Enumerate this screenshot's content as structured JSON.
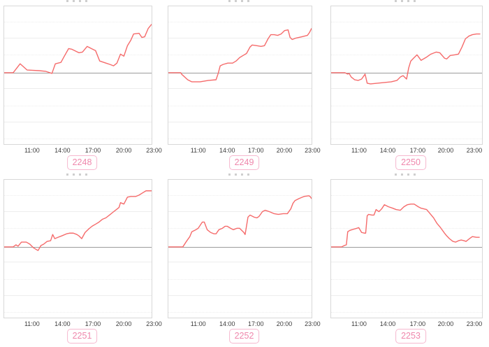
{
  "page": {
    "background": "#ffffff"
  },
  "colors": {
    "line": "#f56b6b",
    "baseline": "#9c9c9c",
    "plot_border": "#d8d8d8",
    "grid": "#ededed",
    "tick_text": "#3c3c3c",
    "badge_text": "#ef87ac",
    "badge_border": "#f6b8cf",
    "badge_bg": "#ffffff"
  },
  "points_format": "percent of plot box: x 0=left edge 100=right edge, y 0=top 100=bottom; the dark horizontal reference line (prior-close baseline) sits at baseline_pct",
  "chart_data": [
    {
      "type": "line",
      "title": "2248",
      "x_ticks": [
        "11:00",
        "14:00",
        "17:00",
        "20:00",
        "23:00"
      ],
      "baseline_pct": 48.2,
      "points": [
        [
          0,
          48.2
        ],
        [
          6.1,
          48.2
        ],
        [
          10.8,
          41.7
        ],
        [
          15.5,
          46.2
        ],
        [
          23.5,
          46.7
        ],
        [
          28.2,
          47.2
        ],
        [
          32.4,
          48.7
        ],
        [
          34.7,
          41.7
        ],
        [
          38.5,
          40.7
        ],
        [
          40.8,
          36.2
        ],
        [
          43.7,
          30.7
        ],
        [
          46,
          31.2
        ],
        [
          50.7,
          33.7
        ],
        [
          53.1,
          33.2
        ],
        [
          56.3,
          29.1
        ],
        [
          59.2,
          30.7
        ],
        [
          62,
          32.2
        ],
        [
          64.8,
          39.7
        ],
        [
          69,
          41.2
        ],
        [
          71.8,
          42.2
        ],
        [
          74.2,
          43.2
        ],
        [
          76.5,
          41.2
        ],
        [
          78.9,
          34.7
        ],
        [
          81.2,
          36.2
        ],
        [
          83.6,
          28.6
        ],
        [
          85.9,
          24.6
        ],
        [
          87.8,
          20.1
        ],
        [
          91.5,
          19.6
        ],
        [
          93.4,
          22.6
        ],
        [
          95.3,
          22.1
        ],
        [
          97.7,
          16.1
        ],
        [
          100,
          13.1
        ]
      ]
    },
    {
      "type": "line",
      "title": "2249",
      "x_ticks": [
        "11:00",
        "14:00",
        "17:00",
        "20:00",
        "23:00"
      ],
      "baseline_pct": 48.2,
      "points": [
        [
          0,
          48.2
        ],
        [
          8.7,
          48.2
        ],
        [
          9.2,
          49.2
        ],
        [
          13.5,
          53.3
        ],
        [
          16.4,
          54.8
        ],
        [
          22.2,
          54.8
        ],
        [
          28,
          53.8
        ],
        [
          33.3,
          53.3
        ],
        [
          34.8,
          48.7
        ],
        [
          36.2,
          43.2
        ],
        [
          38.2,
          42.2
        ],
        [
          41.5,
          41.2
        ],
        [
          44.9,
          41.2
        ],
        [
          47.3,
          39.7
        ],
        [
          49.8,
          37.2
        ],
        [
          52.2,
          35.7
        ],
        [
          54.6,
          34.2
        ],
        [
          57,
          29.6
        ],
        [
          58.5,
          28.1
        ],
        [
          61.8,
          28.6
        ],
        [
          64.7,
          29.1
        ],
        [
          67.1,
          28.6
        ],
        [
          69.6,
          23.6
        ],
        [
          71.5,
          20.6
        ],
        [
          73.9,
          20.6
        ],
        [
          76.3,
          21.1
        ],
        [
          78.7,
          20.1
        ],
        [
          81.2,
          17.6
        ],
        [
          83.6,
          17.1
        ],
        [
          85,
          22.6
        ],
        [
          86.5,
          24.1
        ],
        [
          88.9,
          23.1
        ],
        [
          93.2,
          22.1
        ],
        [
          97.1,
          21.1
        ],
        [
          98.5,
          19.1
        ],
        [
          100,
          16.1
        ]
      ]
    },
    {
      "type": "line",
      "title": "2250",
      "x_ticks": [
        "11:00",
        "14:00",
        "17:00",
        "20:00",
        "23:00"
      ],
      "baseline_pct": 48.2,
      "points": [
        [
          0,
          48.2
        ],
        [
          9.2,
          48.2
        ],
        [
          11,
          49.2
        ],
        [
          11.9,
          48.7
        ],
        [
          13.3,
          51.3
        ],
        [
          15.6,
          53.3
        ],
        [
          17.9,
          53.8
        ],
        [
          20.2,
          52.8
        ],
        [
          22.5,
          49.2
        ],
        [
          23.9,
          55.8
        ],
        [
          26.1,
          56.3
        ],
        [
          35.3,
          55.3
        ],
        [
          39.9,
          54.8
        ],
        [
          43.6,
          53.8
        ],
        [
          45.9,
          51.3
        ],
        [
          47.7,
          50.3
        ],
        [
          50,
          52.8
        ],
        [
          51.4,
          44.7
        ],
        [
          52.8,
          39.7
        ],
        [
          54.6,
          37.7
        ],
        [
          56.9,
          35.2
        ],
        [
          59.6,
          39.2
        ],
        [
          62.8,
          37.2
        ],
        [
          66.1,
          34.7
        ],
        [
          69.7,
          33.2
        ],
        [
          72,
          33.7
        ],
        [
          75.2,
          37.7
        ],
        [
          76.6,
          38.2
        ],
        [
          78.9,
          35.7
        ],
        [
          82.1,
          35.2
        ],
        [
          84.4,
          34.7
        ],
        [
          86.7,
          29.6
        ],
        [
          89,
          23.6
        ],
        [
          91.3,
          21.6
        ],
        [
          93.6,
          20.6
        ],
        [
          96.3,
          20.1
        ],
        [
          98.6,
          20.1
        ]
      ]
    },
    {
      "type": "line",
      "title": "2251",
      "x_ticks": [
        "11:00",
        "14:00",
        "17:00",
        "20:00",
        "23:00"
      ],
      "baseline_pct": 48.7,
      "points": [
        [
          0,
          48.7
        ],
        [
          6.1,
          48.7
        ],
        [
          8,
          47.2
        ],
        [
          9.4,
          48.2
        ],
        [
          11.7,
          45.2
        ],
        [
          13.1,
          45.2
        ],
        [
          15,
          45.2
        ],
        [
          17.4,
          46.7
        ],
        [
          19.7,
          49.2
        ],
        [
          22.1,
          50.8
        ],
        [
          23,
          51.3
        ],
        [
          24.9,
          47.7
        ],
        [
          26.8,
          46.7
        ],
        [
          29.1,
          44.7
        ],
        [
          31.5,
          44.2
        ],
        [
          32.9,
          39.7
        ],
        [
          34.3,
          42.7
        ],
        [
          36.6,
          41.7
        ],
        [
          39,
          40.7
        ],
        [
          42.3,
          39.2
        ],
        [
          44.6,
          38.7
        ],
        [
          46.9,
          38.7
        ],
        [
          49.3,
          39.7
        ],
        [
          50.7,
          40.7
        ],
        [
          52.6,
          42.7
        ],
        [
          54.9,
          38.2
        ],
        [
          57.3,
          35.7
        ],
        [
          59.6,
          33.7
        ],
        [
          62,
          32.2
        ],
        [
          64.3,
          30.7
        ],
        [
          66.7,
          28.6
        ],
        [
          69,
          27.6
        ],
        [
          71.4,
          25.6
        ],
        [
          73.7,
          23.6
        ],
        [
          76.1,
          21.6
        ],
        [
          77.9,
          20.1
        ],
        [
          78.9,
          16.6
        ],
        [
          81.2,
          17.6
        ],
        [
          83.6,
          12.6
        ],
        [
          85.9,
          12.1
        ],
        [
          89.2,
          12.1
        ],
        [
          91.5,
          11.1
        ],
        [
          93.9,
          9.5
        ],
        [
          96.2,
          8
        ],
        [
          98.6,
          8
        ],
        [
          100,
          8
        ]
      ]
    },
    {
      "type": "line",
      "title": "2252",
      "x_ticks": [
        "11:00",
        "14:00",
        "17:00",
        "20:00",
        "23:00"
      ],
      "baseline_pct": 48.7,
      "points": [
        [
          0,
          48.7
        ],
        [
          10.1,
          48.7
        ],
        [
          12.6,
          44.7
        ],
        [
          15,
          41.2
        ],
        [
          16.4,
          37.7
        ],
        [
          18.4,
          36.7
        ],
        [
          20.8,
          35.2
        ],
        [
          23.7,
          30.7
        ],
        [
          25.1,
          30.7
        ],
        [
          27.1,
          36.2
        ],
        [
          29.5,
          38.2
        ],
        [
          31.9,
          39.2
        ],
        [
          33.3,
          39.2
        ],
        [
          35.3,
          36.2
        ],
        [
          37.7,
          35.2
        ],
        [
          39.6,
          33.7
        ],
        [
          41.1,
          33.7
        ],
        [
          43.5,
          35.2
        ],
        [
          45.4,
          36.2
        ],
        [
          47.8,
          35.2
        ],
        [
          49.8,
          35.2
        ],
        [
          52.7,
          38.2
        ],
        [
          53.6,
          39.7
        ],
        [
          55.6,
          27.1
        ],
        [
          57,
          25.6
        ],
        [
          59.9,
          27.1
        ],
        [
          61.8,
          27.6
        ],
        [
          63.3,
          26.6
        ],
        [
          65.7,
          23.1
        ],
        [
          67.6,
          22.1
        ],
        [
          70.5,
          23.1
        ],
        [
          73.9,
          24.6
        ],
        [
          76.8,
          25.1
        ],
        [
          80.2,
          24.6
        ],
        [
          83.1,
          24.6
        ],
        [
          85.5,
          21.1
        ],
        [
          87,
          17.1
        ],
        [
          88.4,
          15.1
        ],
        [
          91.3,
          13.6
        ],
        [
          94.7,
          12.1
        ],
        [
          98.1,
          11.6
        ],
        [
          99,
          12.1
        ],
        [
          100,
          13.6
        ]
      ]
    },
    {
      "type": "line",
      "title": "2253",
      "x_ticks": [
        "11:00",
        "14:00",
        "17:00",
        "20:00",
        "23:00"
      ],
      "baseline_pct": 48.7,
      "points": [
        [
          0,
          48.7
        ],
        [
          6.9,
          48.7
        ],
        [
          8.7,
          47.7
        ],
        [
          10.1,
          47.2
        ],
        [
          11,
          37.7
        ],
        [
          12.4,
          36.7
        ],
        [
          13.8,
          36.2
        ],
        [
          17,
          35.2
        ],
        [
          18.3,
          34.7
        ],
        [
          20.2,
          38.2
        ],
        [
          22,
          38.7
        ],
        [
          22.9,
          38.7
        ],
        [
          23.9,
          26.1
        ],
        [
          24.8,
          25.1
        ],
        [
          27.1,
          25.6
        ],
        [
          28.4,
          25.6
        ],
        [
          29.8,
          21.6
        ],
        [
          31.7,
          23.1
        ],
        [
          33.5,
          21.1
        ],
        [
          35.3,
          18.1
        ],
        [
          38.1,
          19.6
        ],
        [
          40.8,
          20.6
        ],
        [
          43.1,
          21.6
        ],
        [
          45.9,
          22.1
        ],
        [
          48.2,
          19.6
        ],
        [
          50.5,
          18.1
        ],
        [
          52.8,
          17.6
        ],
        [
          55,
          17.6
        ],
        [
          57.8,
          19.6
        ],
        [
          59.6,
          20.6
        ],
        [
          61.5,
          21.1
        ],
        [
          63.3,
          21.6
        ],
        [
          65.6,
          24.6
        ],
        [
          67.9,
          27.6
        ],
        [
          70.2,
          31.7
        ],
        [
          72.5,
          34.7
        ],
        [
          74.8,
          38.2
        ],
        [
          76.6,
          40.7
        ],
        [
          78.4,
          42.7
        ],
        [
          80.7,
          44.7
        ],
        [
          82.6,
          45.2
        ],
        [
          84.4,
          44.2
        ],
        [
          86.2,
          43.7
        ],
        [
          88.1,
          44.2
        ],
        [
          89.4,
          44.7
        ],
        [
          91.7,
          42.7
        ],
        [
          93.6,
          41.2
        ],
        [
          96.3,
          41.7
        ],
        [
          98.2,
          41.7
        ]
      ]
    }
  ]
}
